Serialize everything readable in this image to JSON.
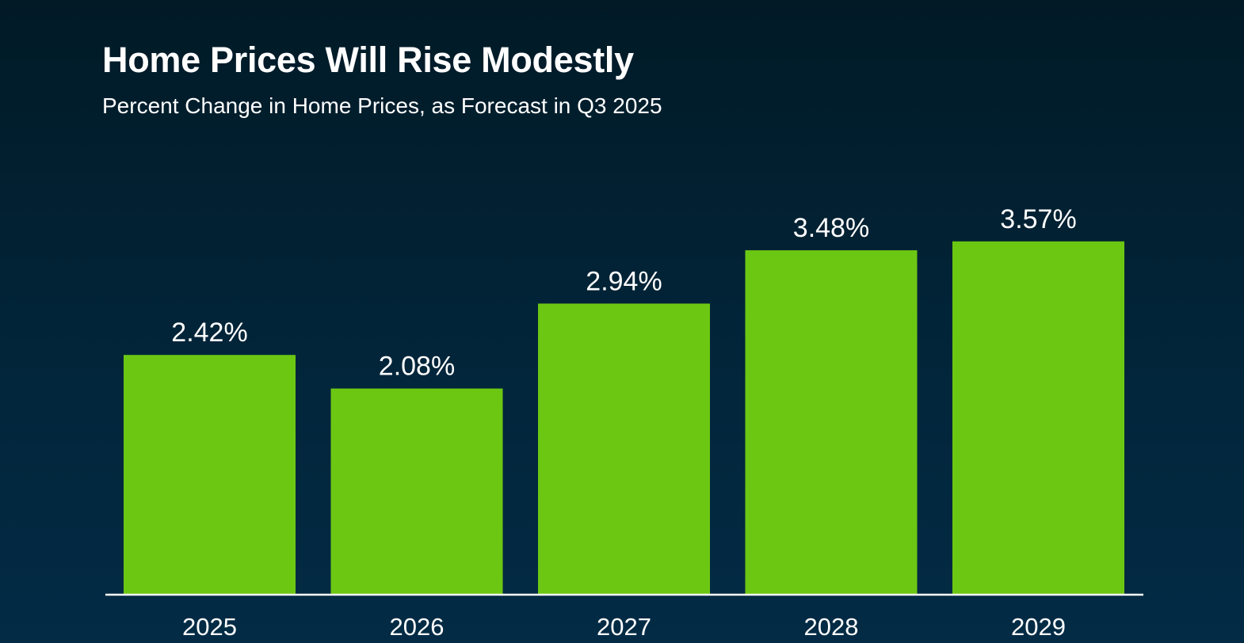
{
  "chart_data": {
    "type": "bar",
    "title": "Home Prices Will Rise Modestly",
    "subtitle": "Percent Change in Home Prices, as Forecast in Q3 2025",
    "xlabel": "",
    "ylabel": "",
    "categories": [
      "2025",
      "2026",
      "2027",
      "2028",
      "2029"
    ],
    "values": [
      2.42,
      2.08,
      2.94,
      3.48,
      3.57
    ],
    "value_labels": [
      "2.42%",
      "2.08%",
      "2.94%",
      "3.48%",
      "3.57%"
    ],
    "ylim": [
      0,
      3.6
    ],
    "grid": false,
    "legend": "none",
    "colors": {
      "bar": "#6cc713",
      "axis": "#ffffff",
      "text": "#ffffff"
    }
  }
}
